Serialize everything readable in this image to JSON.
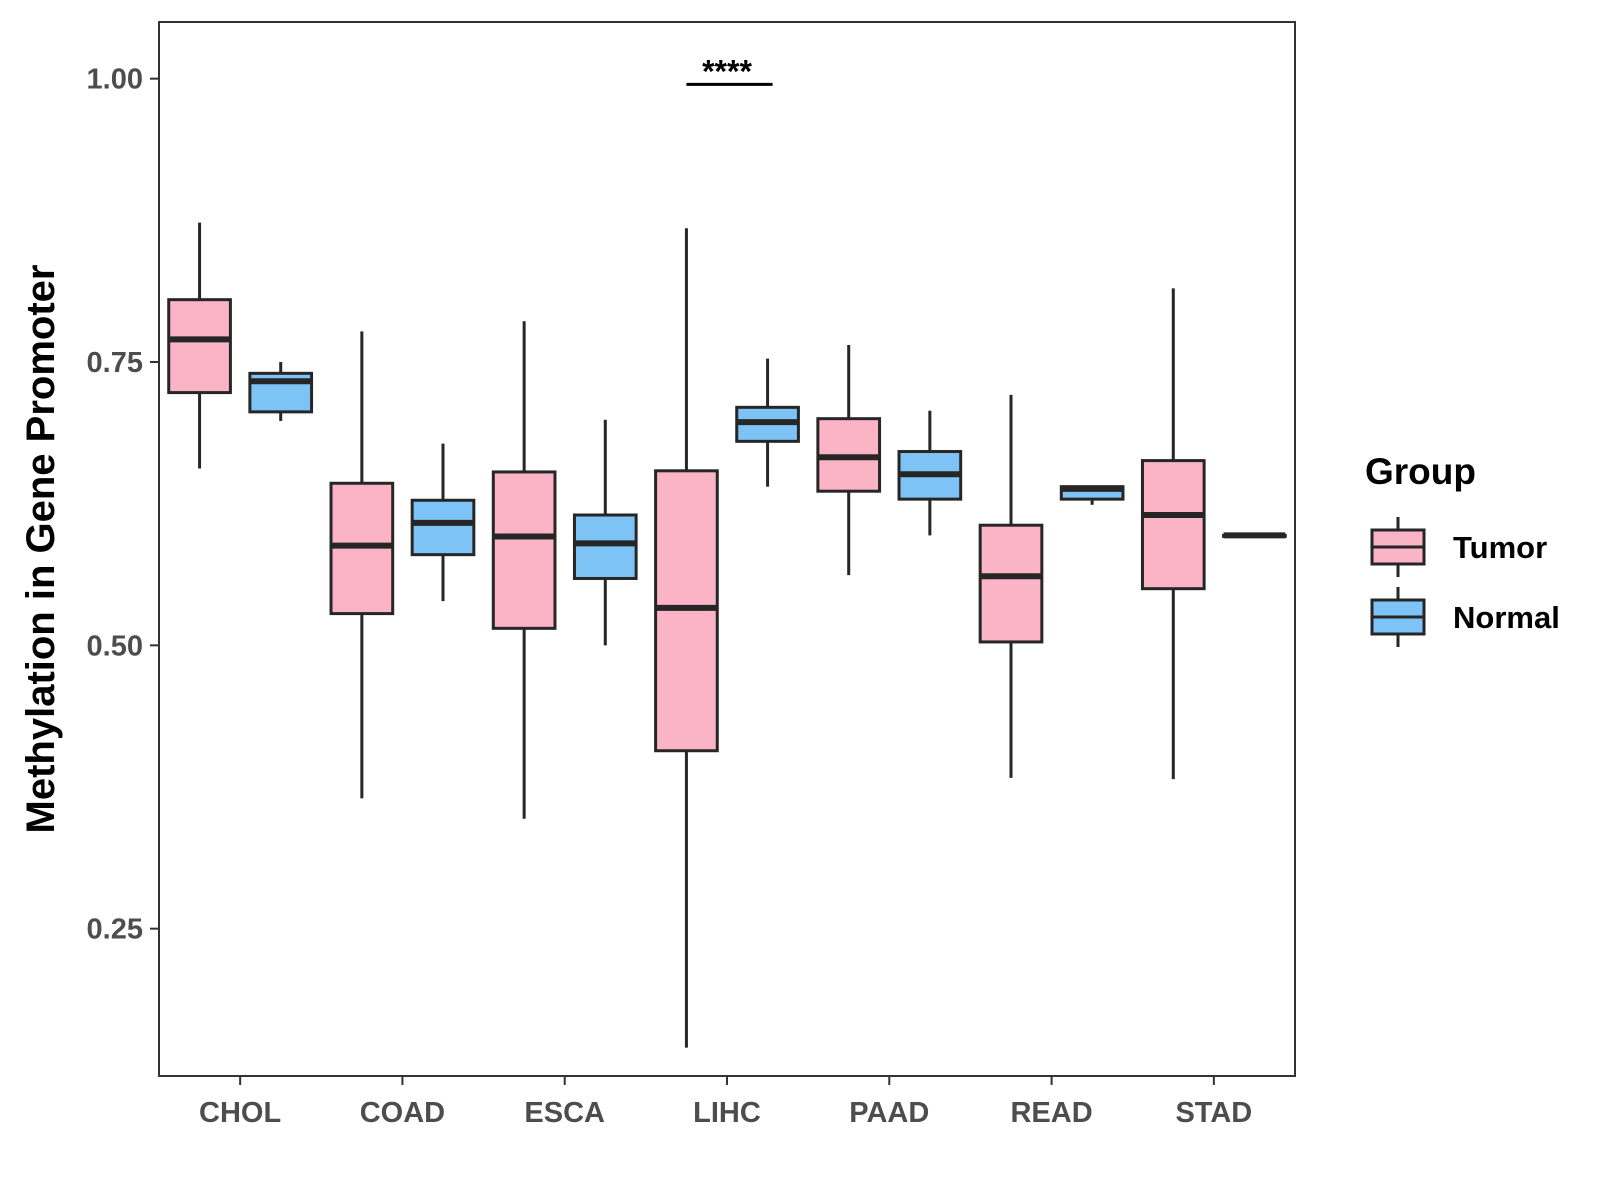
{
  "chart_data": {
    "type": "boxplot",
    "title": "",
    "xlabel": "",
    "ylabel": "Methylation in Gene Promoter",
    "ylim": [
      0.12,
      1.05
    ],
    "yticks": [
      0.25,
      0.5,
      0.75,
      1.0
    ],
    "ytick_labels": [
      "0.25",
      "0.50",
      "0.75",
      "1.00"
    ],
    "grid": false,
    "categories": [
      "CHOL",
      "COAD",
      "ESCA",
      "LIHC",
      "PAAD",
      "READ",
      "STAD"
    ],
    "legend": {
      "title": "Group",
      "placement": "right",
      "entries": [
        {
          "name": "Tumor",
          "color": "#FBB4C6"
        },
        {
          "name": "Normal",
          "color": "#7EC3F5"
        }
      ]
    },
    "series": [
      {
        "name": "Tumor",
        "color": "#FBB4C6",
        "boxes": [
          {
            "category": "CHOL",
            "min": 0.656,
            "q1": 0.723,
            "median": 0.77,
            "q3": 0.805,
            "max": 0.873
          },
          {
            "category": "COAD",
            "min": 0.365,
            "q1": 0.528,
            "median": 0.588,
            "q3": 0.643,
            "max": 0.777
          },
          {
            "category": "ESCA",
            "min": 0.347,
            "q1": 0.515,
            "median": 0.596,
            "q3": 0.653,
            "max": 0.786
          },
          {
            "category": "LIHC",
            "min": 0.145,
            "q1": 0.407,
            "median": 0.533,
            "q3": 0.654,
            "max": 0.868
          },
          {
            "category": "PAAD",
            "min": 0.562,
            "q1": 0.636,
            "median": 0.666,
            "q3": 0.7,
            "max": 0.765
          },
          {
            "category": "READ",
            "min": 0.383,
            "q1": 0.503,
            "median": 0.561,
            "q3": 0.606,
            "max": 0.721
          },
          {
            "category": "STAD",
            "min": 0.382,
            "q1": 0.55,
            "median": 0.615,
            "q3": 0.663,
            "max": 0.815
          }
        ]
      },
      {
        "name": "Normal",
        "color": "#7EC3F5",
        "boxes": [
          {
            "category": "CHOL",
            "min": 0.698,
            "q1": 0.706,
            "median": 0.733,
            "q3": 0.74,
            "max": 0.75
          },
          {
            "category": "COAD",
            "min": 0.539,
            "q1": 0.58,
            "median": 0.608,
            "q3": 0.628,
            "max": 0.678
          },
          {
            "category": "ESCA",
            "min": 0.5,
            "q1": 0.559,
            "median": 0.59,
            "q3": 0.615,
            "max": 0.699
          },
          {
            "category": "LIHC",
            "min": 0.64,
            "q1": 0.68,
            "median": 0.697,
            "q3": 0.71,
            "max": 0.753
          },
          {
            "category": "PAAD",
            "min": 0.597,
            "q1": 0.629,
            "median": 0.651,
            "q3": 0.671,
            "max": 0.707
          },
          {
            "category": "READ",
            "min": 0.624,
            "q1": 0.629,
            "median": 0.638,
            "q3": 0.64,
            "max": 0.64
          },
          {
            "category": "STAD",
            "min": 0.597,
            "q1": 0.597,
            "median": 0.597,
            "q3": 0.597,
            "max": 0.597
          }
        ]
      }
    ],
    "annotations": [
      {
        "category": "LIHC",
        "text": "****",
        "y": 0.995
      }
    ]
  }
}
